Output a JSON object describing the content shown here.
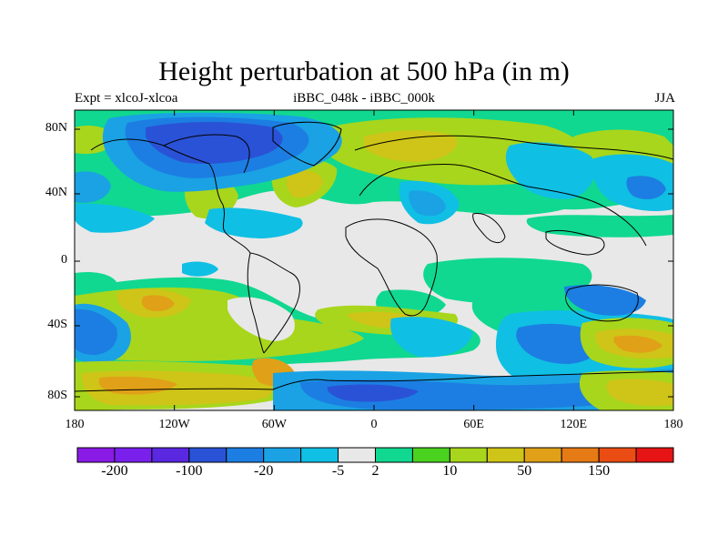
{
  "title": "Height perturbation at 500 hPa (in m)",
  "subtitle_left": "Expt = xlcoJ-xlcoa",
  "subtitle_center": "iBBC_048k - iBBC_000k",
  "subtitle_right": "JJA",
  "lat_ticks": [
    "80N",
    "40N",
    "0",
    "40S",
    "80S"
  ],
  "lon_ticks": [
    "180",
    "120W",
    "60W",
    "0",
    "60E",
    "120E",
    "180"
  ],
  "colorbar": {
    "colors": [
      "#8a1ae6",
      "#7a20ec",
      "#5a28e0",
      "#2a52d6",
      "#1c7ee2",
      "#1aa2e4",
      "#10bfe4",
      "#e8e8e8",
      "#10d890",
      "#4ad21e",
      "#a8d61c",
      "#cfc418",
      "#e0a018",
      "#e67a14",
      "#ea4c14",
      "#e61414"
    ],
    "labels": [
      "-200",
      "-100",
      "-20",
      "-5",
      "2",
      "10",
      "50",
      "150"
    ],
    "labels_at_boundaries": [
      1,
      3,
      5,
      7,
      8,
      10,
      12,
      14
    ]
  }
}
